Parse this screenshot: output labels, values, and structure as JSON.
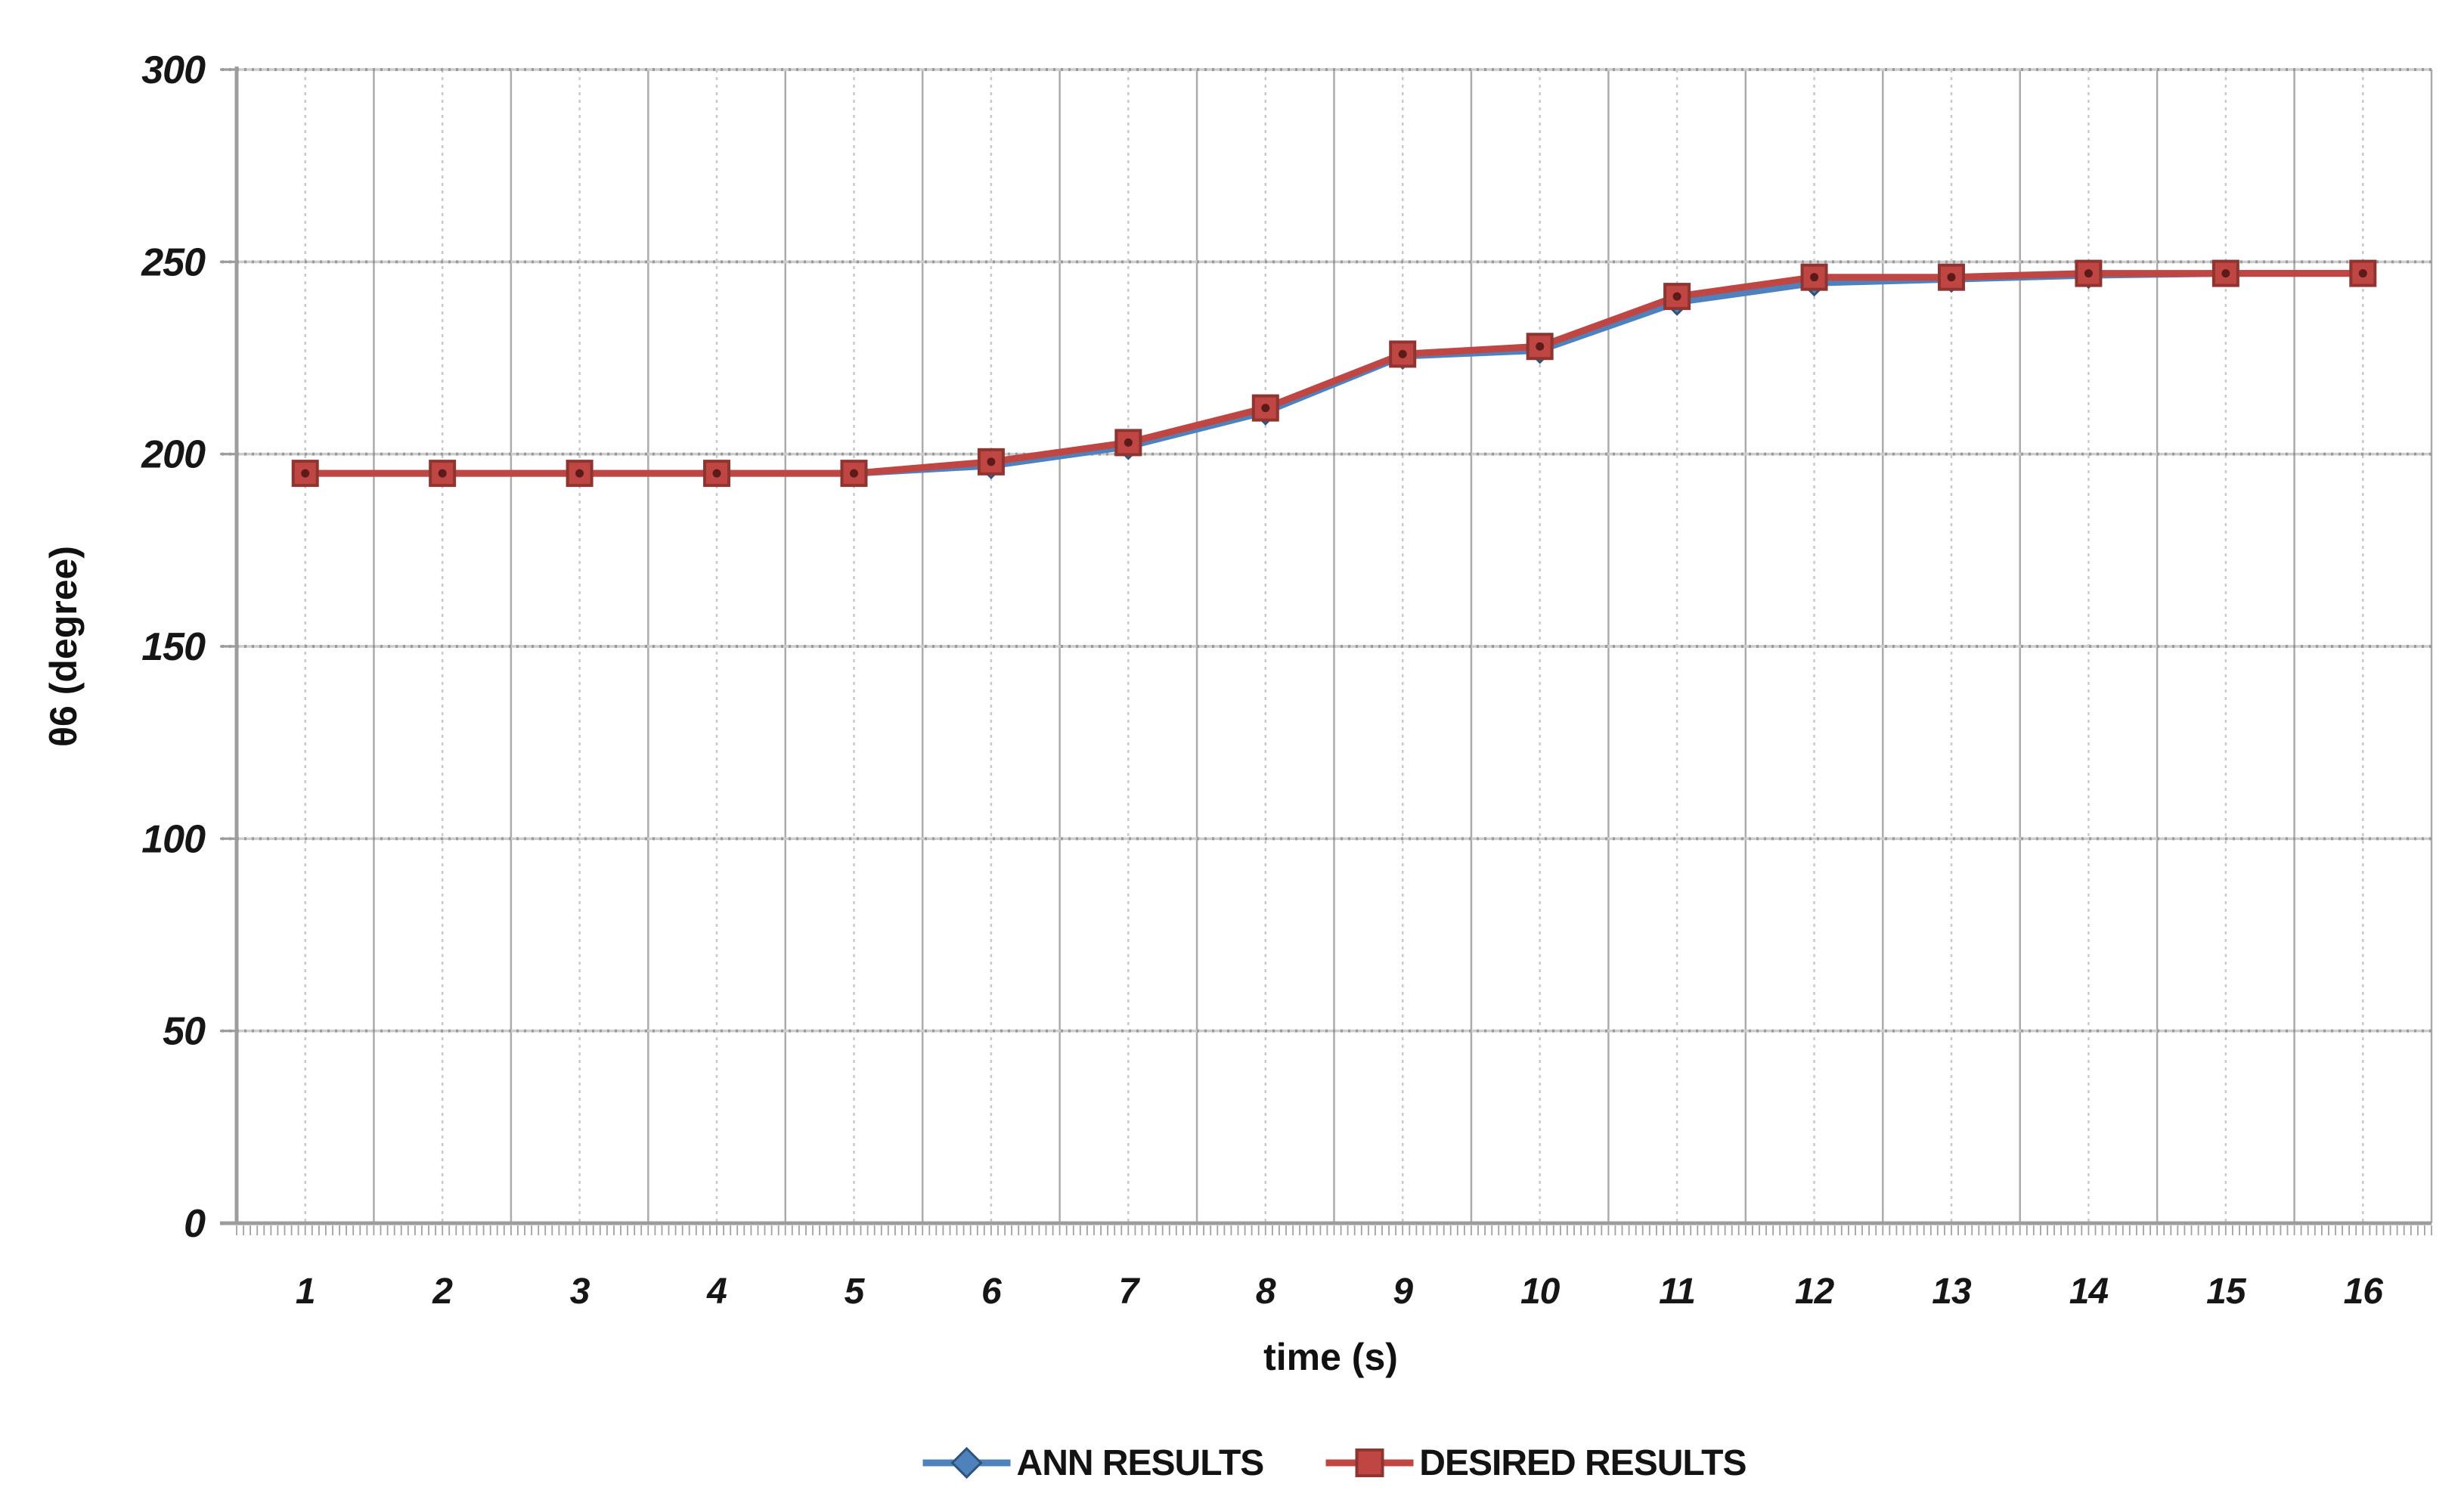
{
  "chart_data": {
    "type": "line",
    "title": "",
    "xlabel": "time (s)",
    "ylabel": "θ6 (degree)",
    "x": [
      1,
      2,
      3,
      4,
      5,
      6,
      7,
      8,
      9,
      10,
      11,
      12,
      13,
      14,
      15,
      16
    ],
    "xlim": [
      0.5,
      16.5
    ],
    "ylim": [
      0,
      300
    ],
    "yticks": [
      0,
      50,
      100,
      150,
      200,
      250,
      300
    ],
    "grid": {
      "horizontal": "major dotted gray every 50",
      "vertical": "solid gray at half-categories, dotted gray at categories"
    },
    "legend_position": "bottom-center",
    "series": [
      {
        "name": "ANN RESULTS",
        "marker": "diamond",
        "color": "#4f81bd",
        "marker_border": "#2f5379",
        "values": [
          195,
          195,
          195,
          195,
          195,
          197,
          202,
          211,
          225.5,
          227,
          239.5,
          244.5,
          245.5,
          246.5,
          247,
          247
        ]
      },
      {
        "name": "DESIRED RESULTS",
        "marker": "square",
        "color": "#bf4642",
        "marker_border": "#8e3431",
        "marker_center_dot": "#4a1412",
        "values": [
          195,
          195,
          195,
          195,
          195,
          198,
          203,
          212,
          226,
          228,
          241,
          246,
          246,
          247,
          247,
          247
        ]
      }
    ]
  }
}
